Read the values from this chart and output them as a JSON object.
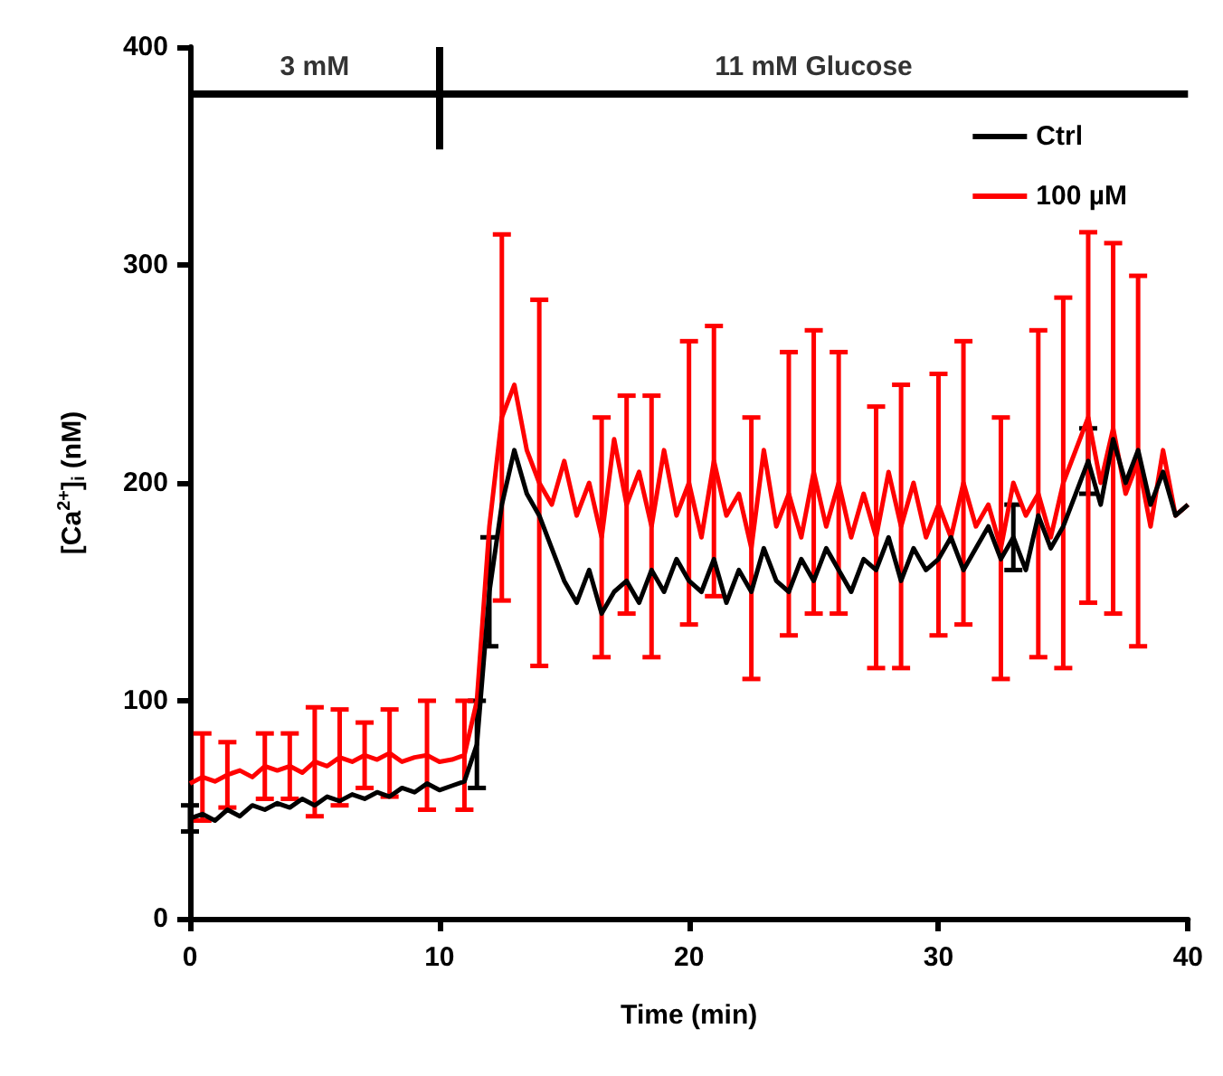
{
  "chart_data": {
    "type": "line",
    "xlabel": "Time (min)",
    "ylabel": "[Ca$^{2+}$]$_{i}$ (nM)",
    "x": [
      0,
      0.5,
      1,
      1.5,
      2,
      2.5,
      3,
      3.5,
      4,
      4.5,
      5,
      5.5,
      6,
      6.5,
      7,
      7.5,
      8,
      8.5,
      9,
      9.5,
      10,
      10.5,
      11,
      11.5,
      12,
      12.5,
      13,
      13.5,
      14,
      14.5,
      15,
      15.5,
      16,
      16.5,
      17,
      17.5,
      18,
      18.5,
      19,
      19.5,
      20,
      20.5,
      21,
      21.5,
      22,
      22.5,
      23,
      23.5,
      24,
      24.5,
      25,
      25.5,
      26,
      26.5,
      27,
      27.5,
      28,
      28.5,
      29,
      29.5,
      30,
      30.5,
      31,
      31.5,
      32,
      32.5,
      33,
      33.5,
      34,
      34.5,
      35,
      35.5,
      36,
      36.5,
      37,
      37.5,
      38,
      38.5,
      39,
      39.5,
      40
    ],
    "series": [
      {
        "name": "Ctrl",
        "color": "#000000",
        "values": [
          46,
          48,
          45,
          50,
          47,
          52,
          50,
          53,
          51,
          55,
          52,
          56,
          54,
          57,
          55,
          58,
          56,
          60,
          58,
          62,
          59,
          61,
          63,
          80,
          150,
          190,
          215,
          195,
          185,
          170,
          155,
          145,
          160,
          140,
          150,
          155,
          145,
          160,
          150,
          165,
          155,
          150,
          165,
          145,
          160,
          150,
          170,
          155,
          150,
          165,
          155,
          170,
          160,
          150,
          165,
          160,
          175,
          155,
          170,
          160,
          165,
          175,
          160,
          170,
          180,
          165,
          175,
          160,
          185,
          170,
          180,
          195,
          210,
          190,
          220,
          200,
          215,
          190,
          205,
          185,
          190
        ],
        "errors": [
          6,
          null,
          null,
          null,
          null,
          null,
          null,
          null,
          null,
          null,
          null,
          null,
          null,
          null,
          null,
          null,
          null,
          null,
          null,
          null,
          null,
          null,
          null,
          20,
          25,
          null,
          null,
          null,
          null,
          null,
          null,
          null,
          null,
          null,
          null,
          null,
          null,
          null,
          null,
          null,
          null,
          null,
          null,
          null,
          null,
          null,
          null,
          null,
          null,
          null,
          null,
          null,
          null,
          null,
          null,
          null,
          null,
          null,
          null,
          null,
          null,
          null,
          null,
          null,
          null,
          null,
          15,
          null,
          null,
          null,
          null,
          null,
          15,
          null,
          null,
          null,
          null,
          null,
          null,
          null,
          null
        ]
      },
      {
        "name": "100 µM",
        "color": "#ff0000",
        "values": [
          62,
          65,
          63,
          66,
          68,
          65,
          70,
          68,
          70,
          67,
          72,
          70,
          74,
          72,
          75,
          73,
          76,
          72,
          74,
          75,
          72,
          73,
          75,
          100,
          180,
          230,
          245,
          215,
          200,
          190,
          210,
          185,
          200,
          175,
          220,
          190,
          205,
          180,
          215,
          185,
          200,
          175,
          210,
          185,
          195,
          170,
          215,
          180,
          195,
          175,
          205,
          180,
          200,
          175,
          195,
          175,
          205,
          180,
          200,
          175,
          190,
          175,
          200,
          180,
          190,
          170,
          200,
          185,
          195,
          175,
          200,
          215,
          230,
          200,
          225,
          195,
          210,
          180,
          215,
          185,
          190
        ],
        "errors": [
          null,
          20,
          null,
          15,
          null,
          null,
          15,
          null,
          15,
          null,
          25,
          null,
          22,
          null,
          15,
          null,
          20,
          null,
          null,
          25,
          null,
          null,
          25,
          null,
          null,
          84,
          null,
          null,
          84,
          null,
          null,
          null,
          null,
          55,
          null,
          50,
          null,
          60,
          null,
          null,
          65,
          null,
          62,
          null,
          null,
          60,
          null,
          null,
          65,
          null,
          65,
          null,
          60,
          null,
          null,
          60,
          null,
          65,
          null,
          null,
          60,
          null,
          65,
          null,
          null,
          60,
          null,
          null,
          75,
          null,
          85,
          null,
          85,
          null,
          85,
          null,
          85,
          null,
          null,
          null,
          null
        ]
      }
    ],
    "xlim": [
      0,
      40
    ],
    "xticks": [
      0,
      10,
      20,
      30,
      40
    ],
    "ylim": [
      0,
      400
    ],
    "yticks": [
      0,
      100,
      200,
      300,
      400
    ],
    "grid": false,
    "legend": "top right",
    "marker": "none",
    "line_style": "solid",
    "annotations": [
      "3 mM",
      "11 mM Glucose"
    ],
    "ref_lines": [
      {
        "axis": "y",
        "value": 379,
        "color": "#000000"
      },
      {
        "axis": "x",
        "value": 10,
        "color": "#000000"
      }
    ]
  }
}
